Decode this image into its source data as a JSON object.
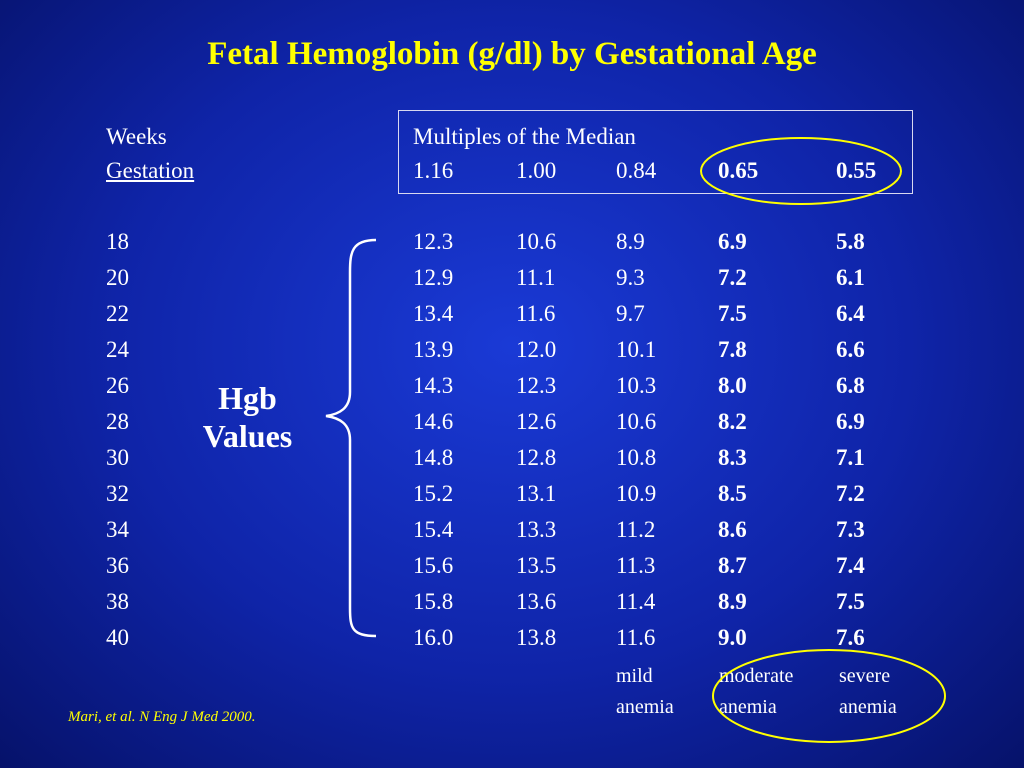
{
  "title": "Fetal Hemoglobin (g/dl) by Gestational Age",
  "header": {
    "weeks": "Weeks",
    "gestation": "Gestation",
    "mom_label": "Multiples of the Median",
    "mom_values": [
      "1.16",
      "1.00",
      "0.84",
      "0.65",
      "0.55"
    ]
  },
  "side_label": [
    "Hgb",
    "Values"
  ],
  "rows": [
    {
      "week": "18",
      "v": [
        "12.3",
        "10.6",
        "8.9",
        "6.9",
        "5.8"
      ]
    },
    {
      "week": "20",
      "v": [
        "12.9",
        "11.1",
        "9.3",
        "7.2",
        "6.1"
      ]
    },
    {
      "week": "22",
      "v": [
        "13.4",
        "11.6",
        "9.7",
        "7.5",
        "6.4"
      ]
    },
    {
      "week": "24",
      "v": [
        "13.9",
        "12.0",
        "10.1",
        "7.8",
        "6.6"
      ]
    },
    {
      "week": "26",
      "v": [
        "14.3",
        "12.3",
        "10.3",
        "8.0",
        "6.8"
      ]
    },
    {
      "week": "28",
      "v": [
        "14.6",
        "12.6",
        "10.6",
        "8.2",
        "6.9"
      ]
    },
    {
      "week": "30",
      "v": [
        "14.8",
        "12.8",
        "10.8",
        "8.3",
        "7.1"
      ]
    },
    {
      "week": "32",
      "v": [
        "15.2",
        "13.1",
        "10.9",
        "8.5",
        "7.2"
      ]
    },
    {
      "week": "34",
      "v": [
        "15.4",
        "13.3",
        "11.2",
        "8.6",
        "7.3"
      ]
    },
    {
      "week": "36",
      "v": [
        "15.6",
        "13.5",
        "11.3",
        "8.7",
        "7.4"
      ]
    },
    {
      "week": "38",
      "v": [
        "15.8",
        "13.6",
        "11.4",
        "8.9",
        "7.5"
      ]
    },
    {
      "week": "40",
      "v": [
        "16.0",
        "13.8",
        "11.6",
        "9.0",
        "7.6"
      ]
    }
  ],
  "footer_labels": [
    {
      "line1": "mild",
      "line2": "anemia"
    },
    {
      "line1": "moderate",
      "line2": "anemia"
    },
    {
      "line1": "severe",
      "line2": "anemia"
    }
  ],
  "citation": "Mari, et al. N Eng J Med 2000.",
  "colors": {
    "title": "#ffff00",
    "background": "#1330c0",
    "text": "#ffffff",
    "ellipse": "#ffff00",
    "citation": "#ffff00"
  }
}
